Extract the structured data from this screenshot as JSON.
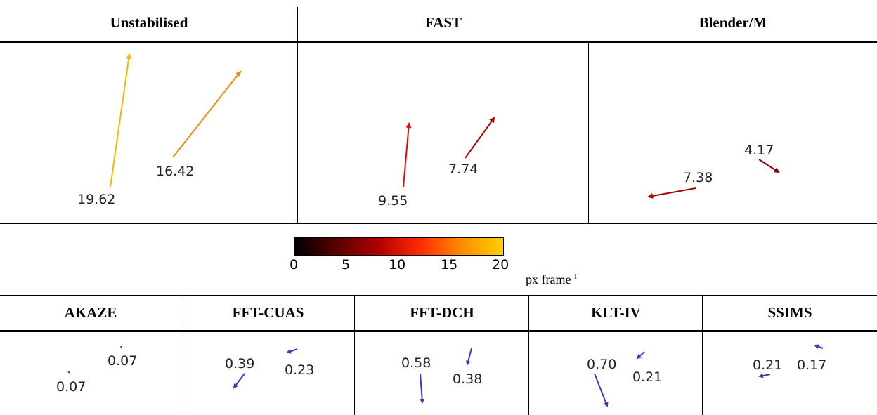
{
  "top_table": {
    "headers": [
      "Unstabilised",
      "FAST",
      "Blender/M"
    ],
    "cells": [
      {
        "method": "Unstabilised",
        "values": [
          "19.62",
          "16.42"
        ]
      },
      {
        "method": "FAST",
        "values": [
          "9.55",
          "7.74"
        ]
      },
      {
        "method": "Blender/M",
        "values": [
          "7.38",
          "4.17"
        ]
      }
    ]
  },
  "colorbar": {
    "ticks": [
      "0",
      "5",
      "10",
      "15",
      "20"
    ],
    "unit_base": "px frame",
    "unit_exp": "-1",
    "colors": [
      "#000000",
      "#5a0000",
      "#b00000",
      "#ff2a00",
      "#ff8c00",
      "#ffd000"
    ]
  },
  "bottom_table": {
    "headers": [
      "AKAZE",
      "FFT-CUAS",
      "FFT-DCH",
      "KLT-IV",
      "SSIMS"
    ],
    "cells": [
      {
        "method": "AKAZE",
        "values": [
          "0.07",
          "0.07"
        ]
      },
      {
        "method": "FFT-CUAS",
        "values": [
          "0.39",
          "0.23"
        ]
      },
      {
        "method": "FFT-DCH",
        "values": [
          "0.58",
          "0.38"
        ]
      },
      {
        "method": "KLT-IV",
        "values": [
          "0.70",
          "0.21"
        ]
      },
      {
        "method": "SSIMS",
        "values": [
          "0.21",
          "0.17"
        ]
      }
    ]
  },
  "arrow_colors": {
    "yellow": "#f5b800",
    "orange": "#f08a10",
    "red": "#dd1010",
    "darkred": "#b00000",
    "maroon": "#8b0000",
    "blue": "#3b3bb0"
  }
}
